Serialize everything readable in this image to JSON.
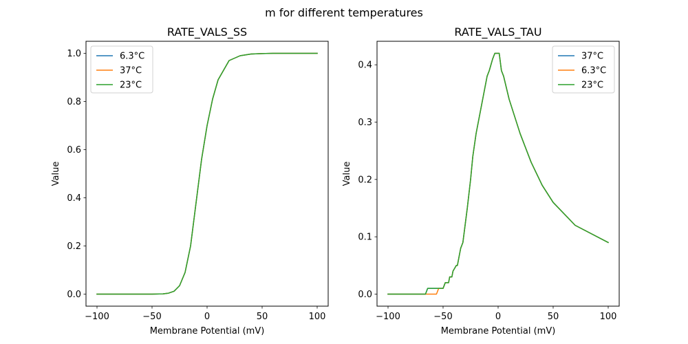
{
  "figure": {
    "suptitle": "m for different temperatures"
  },
  "chart_data": [
    {
      "type": "line",
      "title": "RATE_VALS_SS",
      "xlabel": "Membrane Potential (mV)",
      "ylabel": "Value",
      "xlim": [
        -110,
        110
      ],
      "ylim": [
        -0.05,
        1.05
      ],
      "xticks": [
        -100,
        -50,
        0,
        50,
        100
      ],
      "xtick_labels": [
        "−100",
        "−50",
        "0",
        "50",
        "100"
      ],
      "yticks": [
        0.0,
        0.2,
        0.4,
        0.6,
        0.8,
        1.0
      ],
      "ytick_labels": [
        "0.0",
        "0.2",
        "0.4",
        "0.6",
        "0.8",
        "1.0"
      ],
      "grid": false,
      "legend_position": "upper-left",
      "series": [
        {
          "name": "6.3°C",
          "color": "#1f77b4",
          "x": [
            -100,
            -90,
            -80,
            -70,
            -60,
            -50,
            -40,
            -35,
            -30,
            -25,
            -20,
            -15,
            -10,
            -5,
            0,
            5,
            10,
            20,
            30,
            40,
            50,
            60,
            70,
            80,
            90,
            100
          ],
          "y": [
            0.0,
            0.0,
            0.0,
            0.0,
            0.0,
            0.0,
            0.001,
            0.004,
            0.012,
            0.035,
            0.09,
            0.2,
            0.38,
            0.56,
            0.7,
            0.81,
            0.89,
            0.97,
            0.99,
            0.997,
            0.999,
            1.0,
            1.0,
            1.0,
            1.0,
            1.0
          ]
        },
        {
          "name": "37°C",
          "color": "#ff7f0e",
          "x": [
            -100,
            -90,
            -80,
            -70,
            -60,
            -50,
            -40,
            -35,
            -30,
            -25,
            -20,
            -15,
            -10,
            -5,
            0,
            5,
            10,
            20,
            30,
            40,
            50,
            60,
            70,
            80,
            90,
            100
          ],
          "y": [
            0.0,
            0.0,
            0.0,
            0.0,
            0.0,
            0.0,
            0.001,
            0.004,
            0.012,
            0.035,
            0.09,
            0.2,
            0.38,
            0.56,
            0.7,
            0.81,
            0.89,
            0.97,
            0.99,
            0.997,
            0.999,
            1.0,
            1.0,
            1.0,
            1.0,
            1.0
          ]
        },
        {
          "name": "23°C",
          "color": "#2ca02c",
          "x": [
            -100,
            -90,
            -80,
            -70,
            -60,
            -50,
            -40,
            -35,
            -30,
            -25,
            -20,
            -15,
            -10,
            -5,
            0,
            5,
            10,
            20,
            30,
            40,
            50,
            60,
            70,
            80,
            90,
            100
          ],
          "y": [
            0.0,
            0.0,
            0.0,
            0.0,
            0.0,
            0.0,
            0.001,
            0.004,
            0.012,
            0.035,
            0.09,
            0.2,
            0.38,
            0.56,
            0.7,
            0.81,
            0.89,
            0.97,
            0.99,
            0.997,
            0.999,
            1.0,
            1.0,
            1.0,
            1.0,
            1.0
          ]
        }
      ]
    },
    {
      "type": "line",
      "title": "RATE_VALS_TAU",
      "xlabel": "Membrane Potential (mV)",
      "ylabel": "Value",
      "xlim": [
        -110,
        110
      ],
      "ylim": [
        -0.021,
        0.441
      ],
      "xticks": [
        -100,
        -50,
        0,
        50,
        100
      ],
      "xtick_labels": [
        "−100",
        "−50",
        "0",
        "50",
        "100"
      ],
      "yticks": [
        0.0,
        0.1,
        0.2,
        0.3,
        0.4
      ],
      "ytick_labels": [
        "0.0",
        "0.1",
        "0.2",
        "0.3",
        "0.4"
      ],
      "grid": false,
      "legend_position": "upper-right",
      "series": [
        {
          "name": "37°C",
          "color": "#1f77b4",
          "x": [
            -100,
            -66,
            -64,
            -50,
            -48,
            -45,
            -44,
            -42,
            -41,
            -38,
            -37,
            -35,
            -34,
            -32,
            -30,
            -28,
            -25,
            -23,
            -20,
            -17,
            -15,
            -12,
            -10,
            -8,
            -5,
            -3,
            -1,
            1,
            3,
            5,
            10,
            20,
            30,
            40,
            50,
            70,
            100
          ],
          "y": [
            0.0,
            0.0,
            0.01,
            0.01,
            0.02,
            0.02,
            0.03,
            0.03,
            0.04,
            0.05,
            0.05,
            0.07,
            0.08,
            0.09,
            0.12,
            0.15,
            0.2,
            0.24,
            0.28,
            0.31,
            0.33,
            0.36,
            0.38,
            0.39,
            0.41,
            0.42,
            0.42,
            0.42,
            0.39,
            0.38,
            0.34,
            0.28,
            0.23,
            0.19,
            0.16,
            0.12,
            0.09
          ]
        },
        {
          "name": "6.3°C",
          "color": "#ff7f0e",
          "x": [
            -100,
            -66,
            -56,
            -54,
            -50,
            -48,
            -45,
            -44,
            -42,
            -41,
            -38,
            -37,
            -35,
            -34,
            -32,
            -30,
            -28,
            -25,
            -23,
            -20,
            -17,
            -15,
            -12,
            -10,
            -8,
            -5,
            -3,
            -1,
            1,
            3,
            5,
            10,
            20,
            30,
            40,
            50,
            70,
            100
          ],
          "y": [
            0.0,
            0.0,
            0.0,
            0.01,
            0.01,
            0.02,
            0.02,
            0.03,
            0.03,
            0.04,
            0.05,
            0.05,
            0.07,
            0.08,
            0.09,
            0.12,
            0.15,
            0.2,
            0.24,
            0.28,
            0.31,
            0.33,
            0.36,
            0.38,
            0.39,
            0.41,
            0.42,
            0.42,
            0.42,
            0.39,
            0.38,
            0.34,
            0.28,
            0.23,
            0.19,
            0.16,
            0.12,
            0.09
          ]
        },
        {
          "name": "23°C",
          "color": "#2ca02c",
          "x": [
            -100,
            -66,
            -64,
            -50,
            -48,
            -45,
            -44,
            -42,
            -41,
            -38,
            -37,
            -35,
            -34,
            -32,
            -30,
            -28,
            -25,
            -23,
            -20,
            -17,
            -15,
            -12,
            -10,
            -8,
            -5,
            -3,
            -1,
            1,
            3,
            5,
            10,
            20,
            30,
            40,
            50,
            70,
            100
          ],
          "y": [
            0.0,
            0.0,
            0.01,
            0.01,
            0.02,
            0.02,
            0.03,
            0.03,
            0.04,
            0.05,
            0.05,
            0.07,
            0.08,
            0.09,
            0.12,
            0.15,
            0.2,
            0.24,
            0.28,
            0.31,
            0.33,
            0.36,
            0.38,
            0.39,
            0.41,
            0.42,
            0.42,
            0.42,
            0.39,
            0.38,
            0.34,
            0.28,
            0.23,
            0.19,
            0.16,
            0.12,
            0.09
          ]
        }
      ]
    }
  ]
}
